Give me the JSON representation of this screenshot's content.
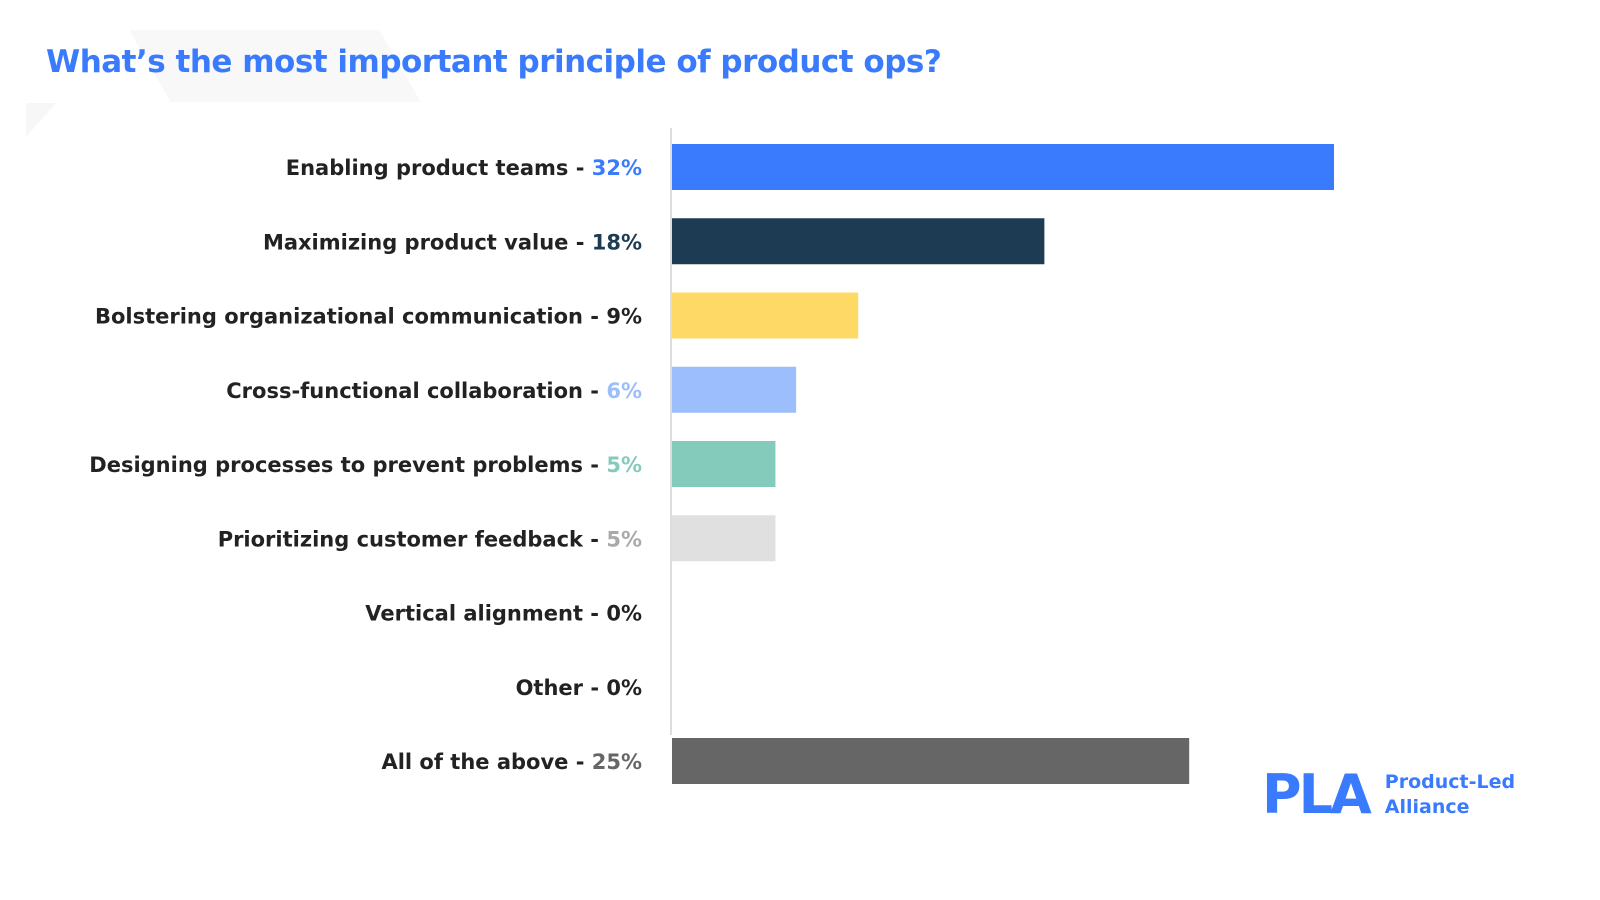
{
  "chart_data": {
    "type": "bar",
    "orientation": "horizontal",
    "title": "What’s the most important principle of product ops?",
    "categories": [
      "Enabling product teams",
      "Maximizing product value",
      "Bolstering organizational communication",
      "Cross-functional collaboration",
      "Designing processes to prevent problems",
      "Prioritizing customer feedback",
      "Vertical alignment",
      "Other",
      "All of the above"
    ],
    "values": [
      32,
      18,
      9,
      6,
      5,
      5,
      0,
      0,
      25
    ],
    "value_labels": [
      "32%",
      "18%",
      "9%",
      "6%",
      "5%",
      "5%",
      "0%",
      "0%",
      "25%"
    ],
    "bar_colors": [
      "#3a7bfd",
      "#1d3b52",
      "#ffd966",
      "#9dbefc",
      "#85cbbb",
      "#e0e0e0",
      "#e0e0e0",
      "#e0e0e0",
      "#666666"
    ],
    "value_label_colors": [
      "#3a7bfd",
      "#1d3b52",
      "#222222",
      "#9dbefc",
      "#85cbbb",
      "#aaaaaa",
      "#222222",
      "#222222",
      "#666666"
    ],
    "xlim": [
      0,
      32
    ],
    "grid": false,
    "legend": "none",
    "unit": "%"
  },
  "logo": {
    "mark": "PLA",
    "line1": "Product-Led",
    "line2": "Alliance"
  },
  "colors": {
    "accent": "#3a7bfd"
  }
}
